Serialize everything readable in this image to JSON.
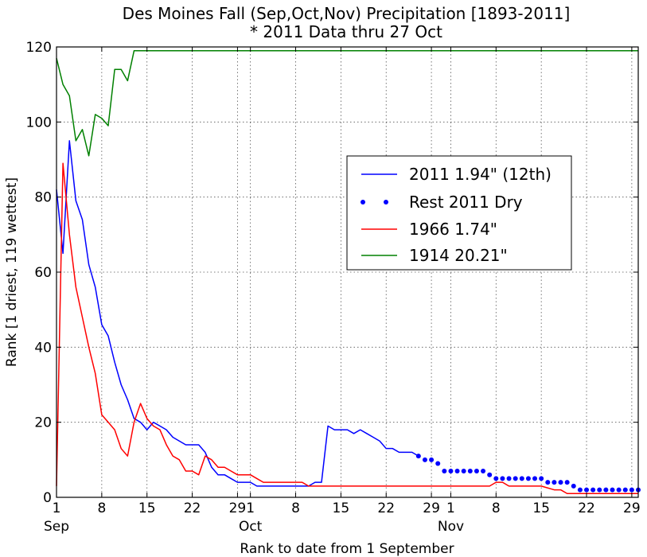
{
  "chart_data": {
    "type": "line",
    "title": "Des Moines Fall (Sep,Oct,Nov) Precipitation [1893-2011]",
    "subtitle": "* 2011 Data thru 27 Oct",
    "xlabel": "Rank to date from 1 September",
    "ylabel": "Rank [1 driest, 119 wettest]",
    "ylim": [
      0,
      120
    ],
    "yticks": [
      "0",
      "20",
      "40",
      "60",
      "80",
      "100",
      "120"
    ],
    "xlim": [
      1,
      91
    ],
    "xticks": [
      {
        "day": 1,
        "label": "1"
      },
      {
        "day": 8,
        "label": "8"
      },
      {
        "day": 15,
        "label": "15"
      },
      {
        "day": 22,
        "label": "22"
      },
      {
        "day": 29,
        "label": "29"
      },
      {
        "day": 31,
        "label": "1"
      },
      {
        "day": 38,
        "label": "8"
      },
      {
        "day": 45,
        "label": "15"
      },
      {
        "day": 52,
        "label": "22"
      },
      {
        "day": 59,
        "label": "29"
      },
      {
        "day": 62,
        "label": "1"
      },
      {
        "day": 69,
        "label": "8"
      },
      {
        "day": 76,
        "label": "15"
      },
      {
        "day": 83,
        "label": "22"
      },
      {
        "day": 90,
        "label": "29"
      }
    ],
    "month_labels": [
      {
        "day": 1,
        "label": "Sep"
      },
      {
        "day": 31,
        "label": "Oct"
      },
      {
        "day": 62,
        "label": "Nov"
      }
    ],
    "grid": true,
    "legend_position": "right-center",
    "series": [
      {
        "name": "2011 1.94\" (12th)",
        "color": "#0000ff",
        "style": "solid",
        "x": [
          1,
          2,
          3,
          4,
          5,
          6,
          7,
          8,
          9,
          10,
          11,
          12,
          13,
          14,
          15,
          16,
          17,
          18,
          19,
          20,
          21,
          22,
          23,
          24,
          25,
          26,
          27,
          28,
          29,
          30,
          31,
          32,
          33,
          34,
          35,
          36,
          37,
          38,
          39,
          40,
          41,
          42,
          43,
          44,
          45,
          46,
          47,
          48,
          49,
          50,
          51,
          52,
          53,
          54,
          55,
          56,
          57
        ],
        "values": [
          82,
          65,
          95,
          79,
          74,
          62,
          56,
          46,
          43,
          36,
          30,
          26,
          21,
          20,
          18,
          20,
          19,
          18,
          16,
          15,
          14,
          14,
          14,
          12,
          8,
          6,
          6,
          5,
          4,
          4,
          4,
          3,
          3,
          3,
          3,
          3,
          3,
          3,
          3,
          3,
          4,
          4,
          19,
          18,
          18,
          18,
          17,
          18,
          17,
          16,
          15,
          13,
          13,
          12,
          12,
          12,
          11
        ]
      },
      {
        "name": "Rest 2011 Dry",
        "color": "#0000ff",
        "style": "dotted",
        "x": [
          57,
          58,
          59,
          60,
          61,
          62,
          63,
          64,
          65,
          66,
          67,
          68,
          69,
          70,
          71,
          72,
          73,
          74,
          75,
          76,
          77,
          78,
          79,
          80,
          81,
          82,
          83,
          84,
          85,
          86,
          87,
          88,
          89,
          90,
          91
        ],
        "values": [
          11,
          10,
          10,
          9,
          7,
          7,
          7,
          7,
          7,
          7,
          7,
          6,
          5,
          5,
          5,
          5,
          5,
          5,
          5,
          5,
          4,
          4,
          4,
          4,
          3,
          2,
          2,
          2,
          2,
          2,
          2,
          2,
          2,
          2,
          2
        ]
      },
      {
        "name": "1966 1.74\"",
        "color": "#ff0000",
        "style": "solid",
        "x": [
          1,
          2,
          3,
          4,
          5,
          6,
          7,
          8,
          9,
          10,
          11,
          12,
          13,
          14,
          15,
          16,
          17,
          18,
          19,
          20,
          21,
          22,
          23,
          24,
          25,
          26,
          27,
          28,
          29,
          30,
          31,
          32,
          33,
          34,
          35,
          36,
          37,
          38,
          39,
          40,
          45,
          50,
          55,
          60,
          65,
          68,
          69,
          70,
          71,
          75,
          76,
          78,
          79,
          80,
          85,
          91
        ],
        "values": [
          3,
          89,
          70,
          56,
          48,
          40,
          33,
          22,
          20,
          18,
          13,
          11,
          20,
          25,
          21,
          19,
          18,
          14,
          11,
          10,
          7,
          7,
          6,
          11,
          10,
          8,
          8,
          7,
          6,
          6,
          6,
          5,
          4,
          4,
          4,
          4,
          4,
          4,
          4,
          3,
          3,
          3,
          3,
          3,
          3,
          3,
          4,
          4,
          3,
          3,
          3,
          2,
          2,
          1,
          1,
          1
        ]
      },
      {
        "name": "1914 20.21\"",
        "color": "#008000",
        "style": "solid",
        "x": [
          1,
          2,
          3,
          4,
          5,
          6,
          7,
          8,
          9,
          10,
          11,
          12,
          13,
          14,
          15,
          20,
          30,
          40,
          50,
          60,
          70,
          80,
          91
        ],
        "values": [
          117,
          110,
          107,
          95,
          98,
          91,
          102,
          101,
          99,
          114,
          114,
          111,
          119,
          119,
          119,
          119,
          119,
          119,
          119,
          119,
          119,
          119,
          119
        ]
      }
    ]
  }
}
